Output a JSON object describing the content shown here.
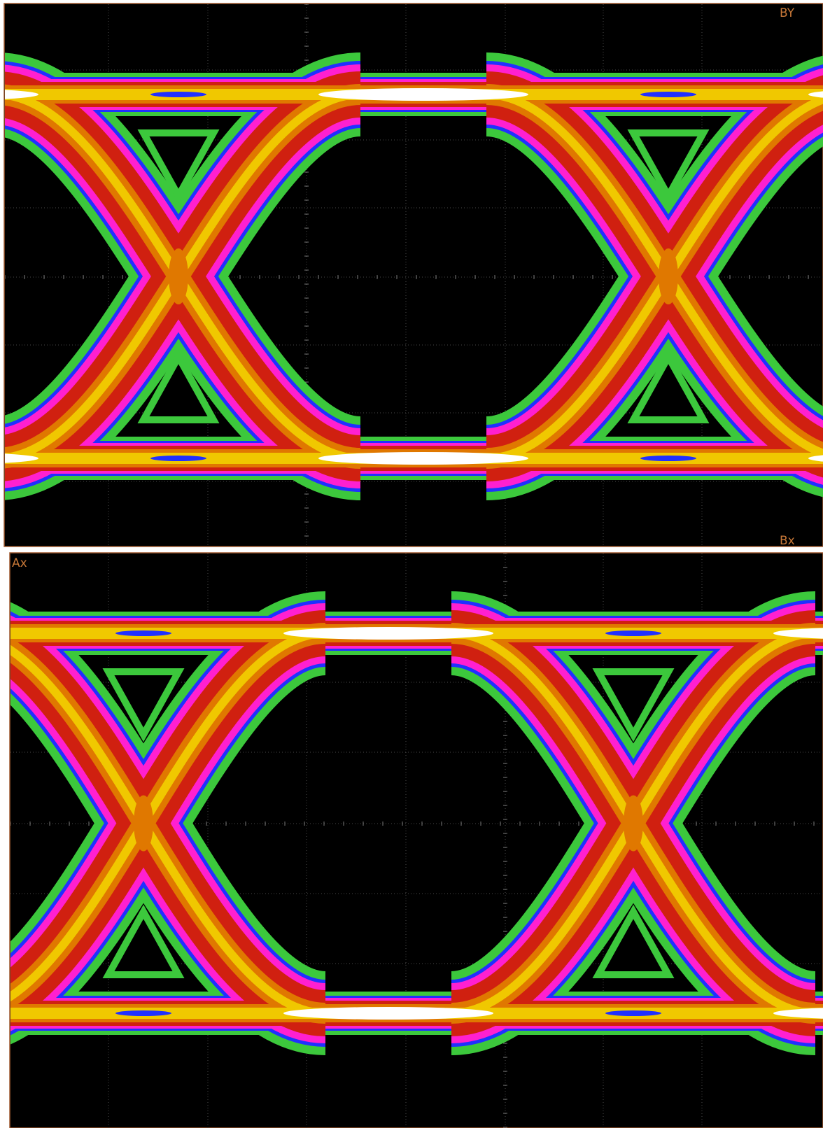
{
  "panels": [
    {
      "labels": [
        "BY",
        "Bx"
      ]
    },
    {
      "labels": [
        "Ax"
      ]
    }
  ]
}
